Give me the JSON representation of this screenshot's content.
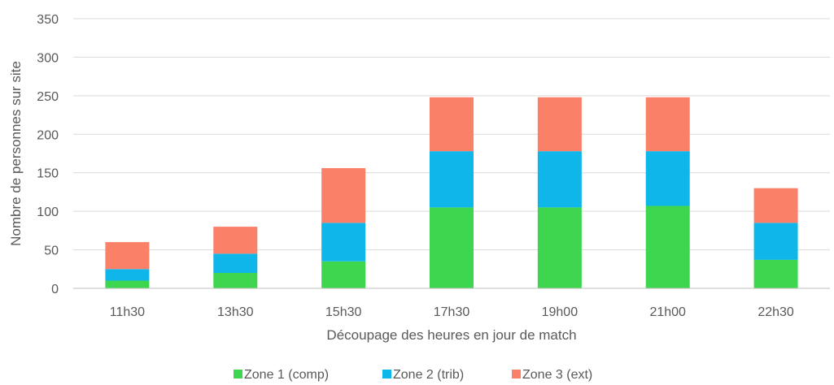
{
  "chart_data": {
    "type": "bar",
    "stacked": true,
    "title": "",
    "xlabel": "Découpage des heures en jour de match",
    "ylabel": "Nombre de personnes sur site",
    "ylim": [
      0,
      350
    ],
    "yticks": [
      0,
      50,
      100,
      150,
      200,
      250,
      300,
      350
    ],
    "grid": true,
    "legend_position": "bottom",
    "categories": [
      "11h30",
      "13h30",
      "15h30",
      "17h30",
      "19h00",
      "21h00",
      "22h30"
    ],
    "series": [
      {
        "name": "Zone 1 (comp)",
        "color": "#3ed64e",
        "values": [
          10,
          20,
          35,
          105,
          105,
          107,
          37
        ]
      },
      {
        "name": "Zone 2 (trib)",
        "color": "#0fb6ea",
        "values": [
          15,
          25,
          50,
          73,
          73,
          71,
          48
        ]
      },
      {
        "name": "Zone 3 (ext)",
        "color": "#fb8068",
        "values": [
          35,
          35,
          71,
          70,
          70,
          70,
          45
        ]
      }
    ]
  }
}
